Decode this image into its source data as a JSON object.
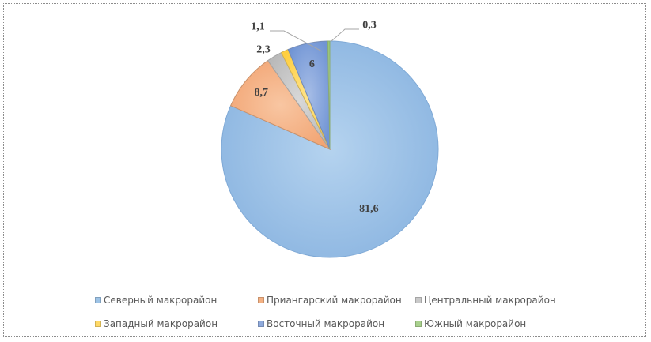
{
  "chart_data": {
    "type": "pie",
    "title": "",
    "categories": [
      "Северный макрорайон",
      "Приангарский макрорайон",
      "Центральный макрорайон",
      "Западный макрорайон",
      "Восточный макрорайон",
      "Южный макрорайон"
    ],
    "values": [
      81.6,
      8.7,
      2.3,
      1.1,
      6,
      0.3
    ],
    "data_labels": [
      "81,6",
      "8,7",
      "2,3",
      "1,1",
      "6",
      "0,3"
    ],
    "colors": [
      "#9dc3e6",
      "#f4b183",
      "#c9c9c9",
      "#ffd966",
      "#8faadc",
      "#a9d18e"
    ],
    "legend_position": "bottom"
  },
  "legend": {
    "items": [
      {
        "label": "Северный макрорайон",
        "color": "#9dc3e6"
      },
      {
        "label": "Приангарский макрорайон",
        "color": "#f4b183"
      },
      {
        "label": "Центральный макрорайон",
        "color": "#c9c9c9"
      },
      {
        "label": "Западный макрорайон",
        "color": "#ffd966"
      },
      {
        "label": "Восточный макрорайон",
        "color": "#8faadc"
      },
      {
        "label": "Южный макрорайон",
        "color": "#a9d18e"
      }
    ]
  }
}
